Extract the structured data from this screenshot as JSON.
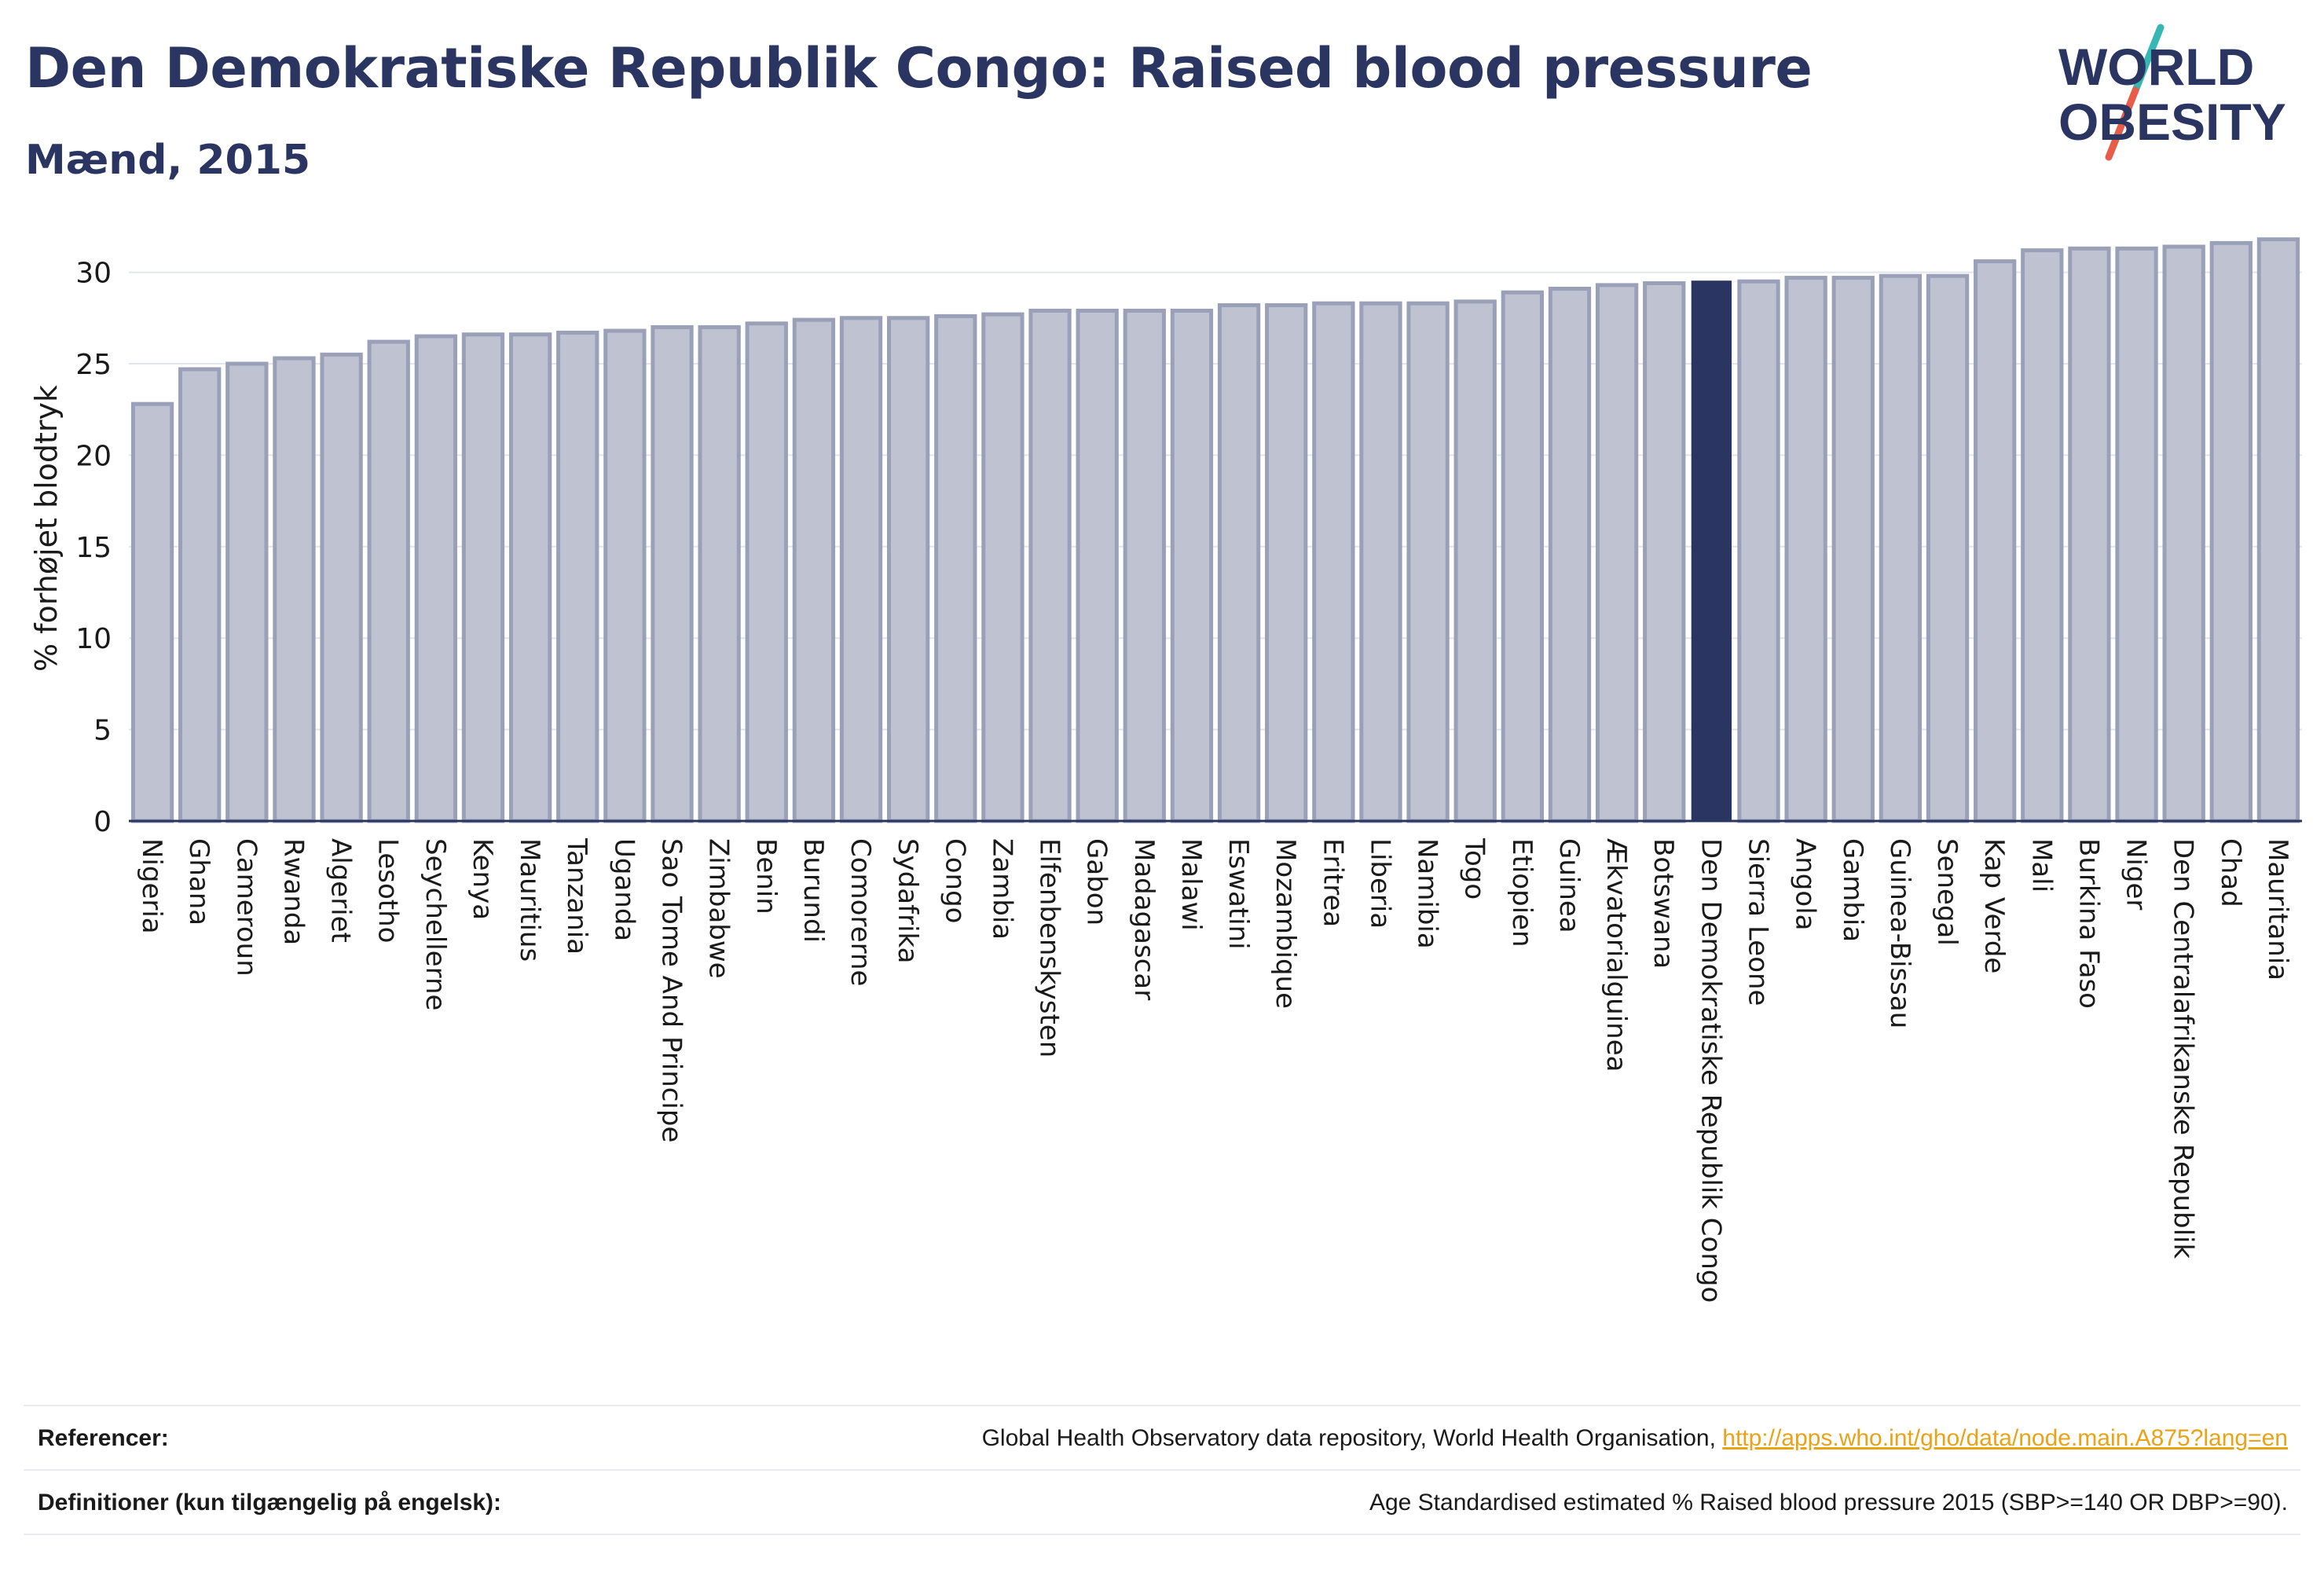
{
  "header": {
    "title": "Den Demokratiske Republik Congo: Raised blood pressure",
    "subtitle": "Mænd, 2015"
  },
  "logo": {
    "line1": "WORLD",
    "line2": "OBESITY",
    "text_color": "#2a3561",
    "slash_colors": [
      "#36b7b4",
      "#e85c4a"
    ]
  },
  "colors": {
    "bar_default": "#bfc3d1",
    "bar_default_stroke": "#9aa0b8",
    "bar_highlight": "#2a3561",
    "axis": "#2a3561",
    "grid": "#e3e5ec"
  },
  "chart_data": {
    "type": "bar",
    "ylabel": "% forhøjet blodtryk",
    "xlabel": "",
    "ylim": [
      0,
      32
    ],
    "yticks": [
      0,
      5,
      10,
      15,
      20,
      25,
      30
    ],
    "grid": true,
    "highlight": "Den Demokratiske Republik Congo",
    "categories": [
      "Nigeria",
      "Ghana",
      "Cameroun",
      "Rwanda",
      "Algeriet",
      "Lesotho",
      "Seychellerne",
      "Kenya",
      "Mauritius",
      "Tanzania",
      "Uganda",
      "Sao Tome And Principe",
      "Zimbabwe",
      "Benin",
      "Burundi",
      "Comorerne",
      "Sydafrika",
      "Congo",
      "Zambia",
      "Elfenbenskysten",
      "Gabon",
      "Madagascar",
      "Malawi",
      "Eswatini",
      "Mozambique",
      "Eritrea",
      "Liberia",
      "Namibia",
      "Togo",
      "Etiopien",
      "Guinea",
      "Ækvatorialguinea",
      "Botswana",
      "Den Demokratiske Republik Congo",
      "Sierra Leone",
      "Angola",
      "Gambia",
      "Guinea-Bissau",
      "Senegal",
      "Kap Verde",
      "Mali",
      "Burkina Faso",
      "Niger",
      "Den Centralafrikanske Republik",
      "Chad",
      "Mauritania"
    ],
    "values": [
      22.8,
      24.7,
      25.0,
      25.3,
      25.5,
      26.2,
      26.5,
      26.6,
      26.6,
      26.7,
      26.8,
      27.0,
      27.0,
      27.2,
      27.4,
      27.5,
      27.5,
      27.6,
      27.7,
      27.9,
      27.9,
      27.9,
      27.9,
      28.2,
      28.2,
      28.3,
      28.3,
      28.3,
      28.4,
      28.9,
      29.1,
      29.3,
      29.4,
      29.5,
      29.5,
      29.7,
      29.7,
      29.8,
      29.8,
      30.6,
      31.2,
      31.3,
      31.3,
      31.4,
      31.6,
      31.8
    ]
  },
  "references": {
    "label": "Referencer:",
    "text": "Global Health Observatory data repository, World Health Organisation, ",
    "link": "http://apps.who.int/gho/data/node.main.A875?lang=en"
  },
  "definitions": {
    "label": "Definitioner (kun tilgængelig på engelsk):",
    "text": "Age Standardised estimated % Raised blood pressure 2015 (SBP>=140 OR DBP>=90)."
  }
}
